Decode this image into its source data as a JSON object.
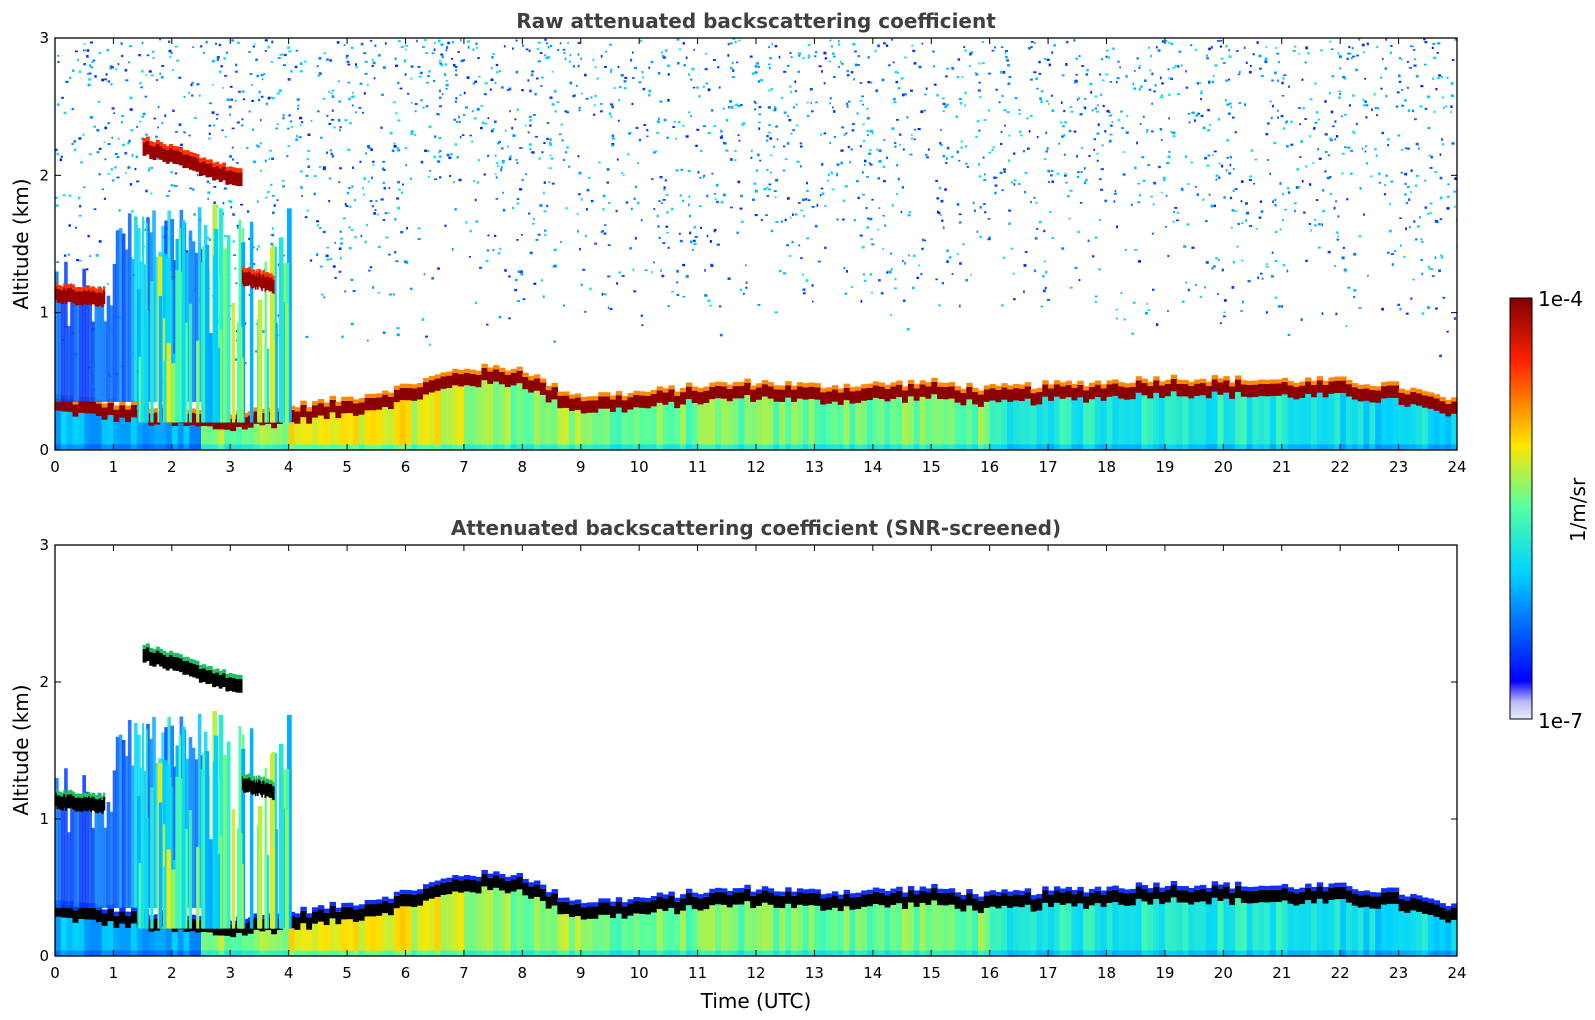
{
  "chart_data": [
    {
      "type": "heatmap",
      "title": "Raw attenuated backscattering coefficient",
      "xlabel": "",
      "ylabel": "Altitude (km)",
      "xlim": [
        0,
        24
      ],
      "ylim": [
        0,
        3
      ],
      "xticks": [
        "0",
        "1",
        "2",
        "3",
        "4",
        "5",
        "6",
        "7",
        "8",
        "9",
        "10",
        "11",
        "12",
        "13",
        "14",
        "15",
        "16",
        "17",
        "18",
        "19",
        "20",
        "21",
        "22",
        "23",
        "24"
      ],
      "yticks": [
        "0",
        "1",
        "2",
        "3"
      ],
      "screened": false,
      "features": {
        "boundary_layer_top_km": [
          {
            "t": 0,
            "h": 0.35
          },
          {
            "t": 1,
            "h": 0.3
          },
          {
            "t": 2,
            "h": 0.25
          },
          {
            "t": 3,
            "h": 0.22
          },
          {
            "t": 4,
            "h": 0.27
          },
          {
            "t": 5,
            "h": 0.33
          },
          {
            "t": 6,
            "h": 0.42
          },
          {
            "t": 7,
            "h": 0.55
          },
          {
            "t": 8,
            "h": 0.55
          },
          {
            "t": 8.5,
            "h": 0.42
          },
          {
            "t": 9,
            "h": 0.35
          },
          {
            "t": 10,
            "h": 0.37
          },
          {
            "t": 11,
            "h": 0.42
          },
          {
            "t": 12,
            "h": 0.45
          },
          {
            "t": 13,
            "h": 0.42
          },
          {
            "t": 14,
            "h": 0.43
          },
          {
            "t": 15,
            "h": 0.45
          },
          {
            "t": 16,
            "h": 0.4
          },
          {
            "t": 17,
            "h": 0.43
          },
          {
            "t": 18,
            "h": 0.45
          },
          {
            "t": 19,
            "h": 0.48
          },
          {
            "t": 20,
            "h": 0.47
          },
          {
            "t": 21,
            "h": 0.46
          },
          {
            "t": 22,
            "h": 0.46
          },
          {
            "t": 23,
            "h": 0.42
          },
          {
            "t": 24,
            "h": 0.3
          }
        ],
        "cloud_layers": [
          {
            "t_start": 0,
            "t_end": 0.85,
            "h_start": 1.13,
            "h_end": 1.1
          },
          {
            "t_start": 1.5,
            "t_end": 3.2,
            "h_start": 2.2,
            "h_end": 1.95
          },
          {
            "t_start": 3.2,
            "t_end": 3.75,
            "h_start": 1.25,
            "h_end": 1.2
          }
        ]
      }
    },
    {
      "type": "heatmap",
      "title": "Attenuated backscattering coefficient (SNR-screened)",
      "xlabel": "Time (UTC)",
      "ylabel": "Altitude (km)",
      "xlim": [
        0,
        24
      ],
      "ylim": [
        0,
        3
      ],
      "xticks": [
        "0",
        "1",
        "2",
        "3",
        "4",
        "5",
        "6",
        "7",
        "8",
        "9",
        "10",
        "11",
        "12",
        "13",
        "14",
        "15",
        "16",
        "17",
        "18",
        "19",
        "20",
        "21",
        "22",
        "23",
        "24"
      ],
      "yticks": [
        "0",
        "1",
        "2",
        "3"
      ],
      "screened": true
    }
  ],
  "colorbar": {
    "label": "1/m/sr",
    "max_label": "1e-4",
    "min_label": "1e-7",
    "range": [
      1e-07,
      0.0001
    ],
    "scale": "log",
    "colormap": "jet",
    "low_colors": [
      "#eaeaff",
      "#c8c8f8",
      "#a8a8f0"
    ],
    "high_color": "#800000"
  }
}
